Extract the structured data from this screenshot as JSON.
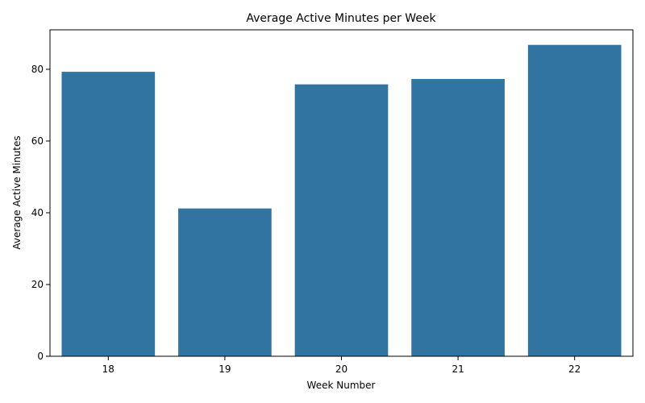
{
  "chart_data": {
    "type": "bar",
    "title": "Average Active Minutes per Week",
    "xlabel": "Week Number",
    "ylabel": "Average Active Minutes",
    "categories": [
      "18",
      "19",
      "20",
      "21",
      "22"
    ],
    "values": [
      79.3,
      41.2,
      75.8,
      77.3,
      86.8
    ],
    "ylim": [
      0,
      91
    ],
    "yticks": [
      0,
      20,
      40,
      60,
      80
    ],
    "grid": false,
    "legend": "none",
    "bar_color": "#3274a1"
  }
}
